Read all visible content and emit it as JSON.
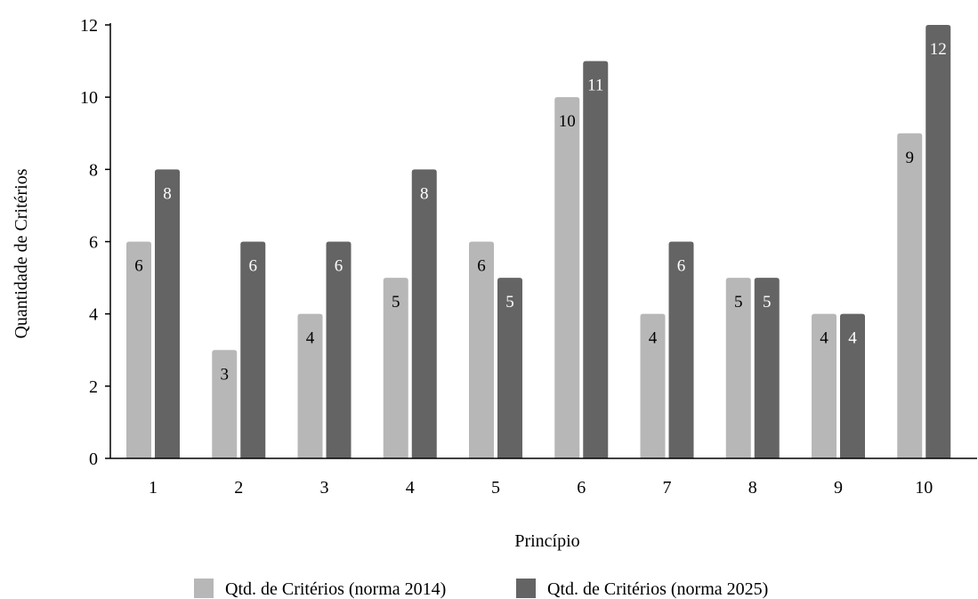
{
  "chart_data": {
    "type": "bar",
    "categories": [
      "1",
      "2",
      "3",
      "4",
      "5",
      "6",
      "7",
      "8",
      "9",
      "10"
    ],
    "series": [
      {
        "name": "Qtd. de Critérios (norma 2014)",
        "values": [
          6,
          3,
          4,
          5,
          6,
          10,
          4,
          5,
          4,
          9
        ],
        "color": "#b7b7b7",
        "label_color": "#000000"
      },
      {
        "name": "Qtd. de Critérios (norma 2025)",
        "values": [
          8,
          6,
          6,
          8,
          5,
          11,
          6,
          5,
          4,
          12
        ],
        "color": "#646464",
        "label_color": "#ffffff"
      }
    ],
    "xlabel": "Princípio",
    "ylabel": "Quantidade de Critérios",
    "ylim": [
      0,
      12
    ],
    "yticks": [
      0,
      2,
      4,
      6,
      8,
      10,
      12
    ],
    "grid": false,
    "legend": "bottom-center",
    "data_labels": "inside-top"
  }
}
